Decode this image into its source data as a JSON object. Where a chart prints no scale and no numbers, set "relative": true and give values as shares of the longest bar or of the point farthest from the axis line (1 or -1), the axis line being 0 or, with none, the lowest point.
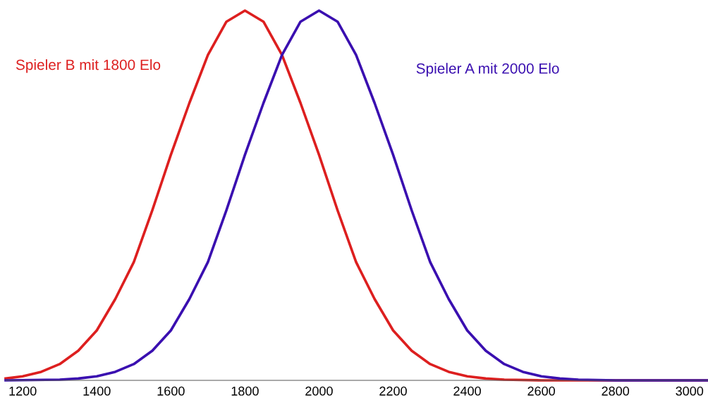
{
  "chart_data": {
    "type": "line",
    "relative": true,
    "xlim": [
      1154,
      3050
    ],
    "xticks": [
      1200,
      1400,
      1600,
      1800,
      2000,
      2200,
      2400,
      2600,
      2800,
      3000
    ],
    "grid": false,
    "legend": false,
    "marker": "none",
    "line_style": "solid",
    "series": [
      {
        "name": "Spieler B mit 1800 Elo",
        "color": "#dd1f1f",
        "x": [
          1154,
          1200,
          1250,
          1300,
          1350,
          1400,
          1450,
          1500,
          1550,
          1600,
          1650,
          1700,
          1750,
          1800,
          1850,
          1900,
          1950,
          2000,
          2050,
          2100,
          2150,
          2200,
          2250,
          2300,
          2350,
          2400,
          2450,
          2500,
          2600,
          3050
        ],
        "values": [
          0.005,
          0.011,
          0.023,
          0.044,
          0.08,
          0.135,
          0.22,
          0.32,
          0.46,
          0.61,
          0.75,
          0.88,
          0.97,
          1,
          0.97,
          0.88,
          0.75,
          0.61,
          0.46,
          0.32,
          0.22,
          0.135,
          0.08,
          0.044,
          0.023,
          0.011,
          0.005,
          0.002,
          0,
          0
        ]
      },
      {
        "name": "Spieler A mit 2000 Elo",
        "color": "#3a0fb0",
        "x": [
          1154,
          1300,
          1350,
          1400,
          1450,
          1500,
          1550,
          1600,
          1650,
          1700,
          1750,
          1800,
          1850,
          1900,
          1950,
          2000,
          2050,
          2100,
          2150,
          2200,
          2250,
          2300,
          2350,
          2400,
          2450,
          2500,
          2550,
          2600,
          2650,
          2700,
          2800,
          3050
        ],
        "values": [
          0,
          0.002,
          0.005,
          0.011,
          0.023,
          0.044,
          0.08,
          0.135,
          0.22,
          0.32,
          0.46,
          0.61,
          0.75,
          0.88,
          0.97,
          1,
          0.97,
          0.88,
          0.75,
          0.61,
          0.46,
          0.32,
          0.22,
          0.135,
          0.08,
          0.044,
          0.023,
          0.011,
          0.005,
          0.002,
          0,
          0
        ]
      }
    ]
  }
}
